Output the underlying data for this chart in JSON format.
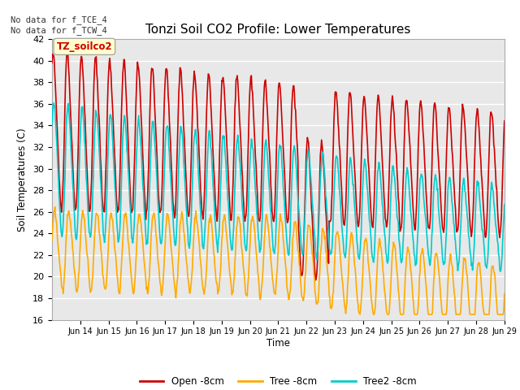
{
  "title": "Tonzi Soil CO2 Profile: Lower Temperatures",
  "ylabel": "Soil Temperatures (C)",
  "xlabel": "Time",
  "top_left_text": "No data for f_TCE_4\nNo data for f_TCW_4",
  "box_label": "TZ_soilco2",
  "ylim": [
    16,
    42
  ],
  "yticks": [
    16,
    18,
    20,
    22,
    24,
    26,
    28,
    30,
    32,
    34,
    36,
    38,
    40,
    42
  ],
  "xtick_labels": [
    "Jun 14",
    "Jun 15",
    "Jun 16",
    "Jun 17",
    "Jun 18",
    "Jun 19",
    "Jun 20",
    "Jun 21",
    "Jun 22",
    "Jun 23",
    "Jun 24",
    "Jun 25",
    "Jun 26",
    "Jun 27",
    "Jun 28",
    "Jun 29"
  ],
  "series": {
    "open": {
      "label": "Open -8cm",
      "color": "#cc0000",
      "linewidth": 1.2
    },
    "tree": {
      "label": "Tree -8cm",
      "color": "#ffaa00",
      "linewidth": 1.2
    },
    "tree2": {
      "label": "Tree2 -8cm",
      "color": "#00cccc",
      "linewidth": 1.2
    }
  },
  "bg_color": "#e8e8e8",
  "grid_color": "#ffffff"
}
